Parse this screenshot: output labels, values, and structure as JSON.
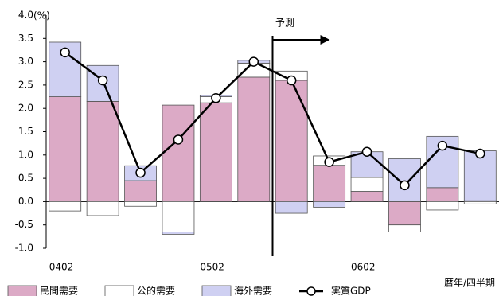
{
  "chart_data": {
    "type": "stacked-bar-line",
    "unit_label": "(%)",
    "forecast_label": "予測",
    "x_axis_label": "暦年/四半期",
    "categories": [
      "0402",
      null,
      null,
      null,
      "0502",
      null,
      null,
      null,
      "0602",
      null,
      null,
      null
    ],
    "series": [
      {
        "name": "民間需要",
        "color": "#dcaac6",
        "values": [
          2.25,
          2.15,
          0.45,
          2.07,
          2.12,
          2.67,
          2.6,
          0.78,
          0.22,
          -0.5,
          0.3,
          0.02
        ]
      },
      {
        "name": "公的需要",
        "color": "#ffffff",
        "values": [
          -0.2,
          -0.3,
          -0.1,
          -0.65,
          0.13,
          0.3,
          0.2,
          0.2,
          0.3,
          -0.15,
          -0.18,
          -0.05
        ]
      },
      {
        "name": "海外需要",
        "color": "#cfd0f2",
        "values": [
          1.17,
          0.77,
          0.32,
          -0.05,
          0.03,
          0.06,
          -0.25,
          -0.12,
          0.55,
          0.92,
          1.1,
          1.07
        ]
      },
      {
        "name": "実質GDP",
        "type": "line",
        "color": "#000000",
        "values": [
          3.2,
          2.6,
          0.62,
          1.33,
          2.22,
          3.0,
          2.6,
          0.85,
          1.07,
          0.35,
          1.2,
          1.03
        ]
      }
    ],
    "ylim": [
      -1,
      4
    ],
    "yticks": [
      {
        "value": 4,
        "label": "4.0"
      },
      3.5,
      {
        "value": 3,
        "label": "3.0"
      },
      2.5,
      {
        "value": 2,
        "label": "2.0"
      },
      1.5,
      {
        "value": 1,
        "label": "1.0"
      },
      0.5,
      {
        "value": 0,
        "label": "0.0"
      },
      -0.5,
      {
        "value": -1,
        "label": "-1.0"
      }
    ]
  }
}
